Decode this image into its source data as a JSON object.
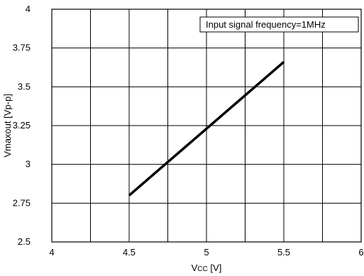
{
  "chart_data": {
    "type": "line",
    "xlabel": "Vcc [V]",
    "ylabel": "Vmaxout [Vp-p]",
    "xlim": [
      4,
      6
    ],
    "ylim": [
      2.5,
      4
    ],
    "x_ticks": [
      "4",
      "4.5",
      "5",
      "5.5",
      "6"
    ],
    "y_ticks": [
      "2.5",
      "2.75",
      "3",
      "3.25",
      "3.5",
      "3.75",
      "4"
    ],
    "grid": true,
    "annotation": "Input signal frequency=1MHz",
    "series": [
      {
        "x": [
          4.5,
          5.5
        ],
        "y": [
          2.8,
          3.66
        ]
      }
    ],
    "colors": {
      "line": "#000000",
      "grid": "#000000",
      "background": "#ffffff"
    }
  }
}
